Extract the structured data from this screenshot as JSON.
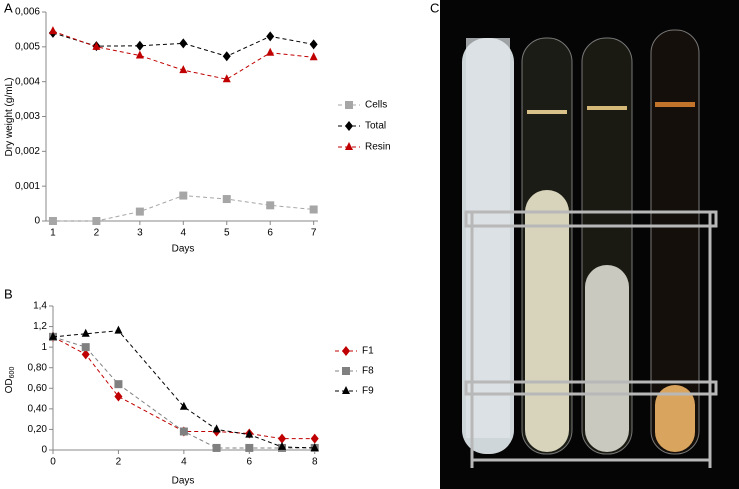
{
  "chart_data": [
    {
      "type": "line",
      "panel": "A",
      "xlabel": "Days",
      "ylabel": "Dry weight (g/mL)",
      "x": [
        1,
        2,
        3,
        4,
        5,
        6,
        7
      ],
      "xlim": [
        0.84,
        7.1
      ],
      "xticks": [
        1,
        2,
        3,
        4,
        5,
        6,
        7
      ],
      "ylim": [
        0,
        0.006
      ],
      "yticks": [
        0,
        {
          "value": 0.001,
          "label": "0,001"
        },
        {
          "value": 0.002,
          "label": "0,002"
        },
        {
          "value": 0.003,
          "label": "0,003"
        },
        {
          "value": 0.004,
          "label": "0,004"
        },
        {
          "value": 0.005,
          "label": "0,005"
        },
        {
          "value": 0.006,
          "label": "0,006"
        }
      ],
      "series": [
        {
          "name": "Cells",
          "color": "#a6a6a6",
          "marker": "square",
          "values": [
            0,
            0,
            0.00027,
            0.00073,
            0.00063,
            0.00045,
            0.00033
          ]
        },
        {
          "name": "Total",
          "color": "#000000",
          "marker": "diamond",
          "values": [
            0.0054,
            0.00502,
            0.00503,
            0.0051,
            0.00473,
            0.0053,
            0.00507
          ]
        },
        {
          "name": "Resin",
          "color": "#c00000",
          "marker": "triangle",
          "values": [
            0.00545,
            0.005,
            0.00475,
            0.00433,
            0.00407,
            0.00483,
            0.0047
          ]
        }
      ]
    },
    {
      "type": "line",
      "panel": "B",
      "xlabel": "Days",
      "ylabel": "OD",
      "ylabel_sub": "600",
      "x": [
        0,
        1,
        2,
        4,
        5,
        6,
        7,
        8
      ],
      "xlim": [
        0,
        8.1
      ],
      "xticks": [
        0,
        2,
        4,
        6,
        8
      ],
      "ylim": [
        0,
        1.4
      ],
      "yticks": [
        0,
        {
          "value": 0.2,
          "label": "0,20"
        },
        {
          "value": 0.4,
          "label": "0,40"
        },
        {
          "value": 0.6,
          "label": "0,60"
        },
        {
          "value": 0.8,
          "label": "0,80"
        },
        1,
        {
          "value": 1.2,
          "label": "1,2"
        },
        {
          "value": 1.4,
          "label": "1,4"
        }
      ],
      "series": [
        {
          "name": "F1",
          "color": "#c00000",
          "marker": "diamond",
          "values": [
            1.1,
            0.93,
            0.52,
            0.18,
            0.18,
            0.16,
            0.11,
            0.11
          ]
        },
        {
          "name": "F8",
          "color": "#808080",
          "marker": "square",
          "values": [
            1.1,
            1.0,
            0.64,
            0.18,
            0.02,
            0.02,
            0.02,
            0.02
          ]
        },
        {
          "name": "F9",
          "color": "#000000",
          "marker": "triangle",
          "values": [
            1.1,
            1.13,
            1.16,
            0.42,
            0.2,
            0.15,
            0.03,
            0.02
          ]
        }
      ]
    }
  ],
  "photo": {
    "panel": "C"
  }
}
